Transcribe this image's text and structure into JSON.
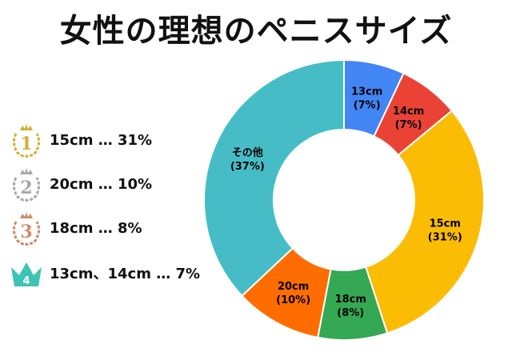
{
  "title": "女性の理想のペニスサイズ",
  "ranking": [
    {
      "rank": "1",
      "text": "15cm … 31%",
      "medal": "gold-crown-icon",
      "color": "#D4AF37"
    },
    {
      "rank": "2",
      "text": "20cm … 10%",
      "medal": "silver-crown-icon",
      "color": "#A8A8A8"
    },
    {
      "rank": "3",
      "text": "18cm … 8%",
      "medal": "bronze-crown-icon",
      "color": "#CD8C6A"
    },
    {
      "rank": "4",
      "text": "13cm、14cm … 7%",
      "medal": "teal-crown-icon",
      "color": "#3CC4B4"
    }
  ],
  "chart_data": {
    "type": "pie",
    "donut": true,
    "categories": [
      "13cm",
      "14cm",
      "15cm",
      "18cm",
      "20cm",
      "その他"
    ],
    "values": [
      7,
      7,
      31,
      8,
      10,
      37
    ],
    "value_labels": [
      "(7%)",
      "(7%)",
      "(31%)",
      "(8%)",
      "(10%)",
      "(37%)"
    ],
    "colors": [
      "#4285F4",
      "#EA4335",
      "#FBBC04",
      "#34A853",
      "#FF6D01",
      "#46BDC6"
    ]
  }
}
